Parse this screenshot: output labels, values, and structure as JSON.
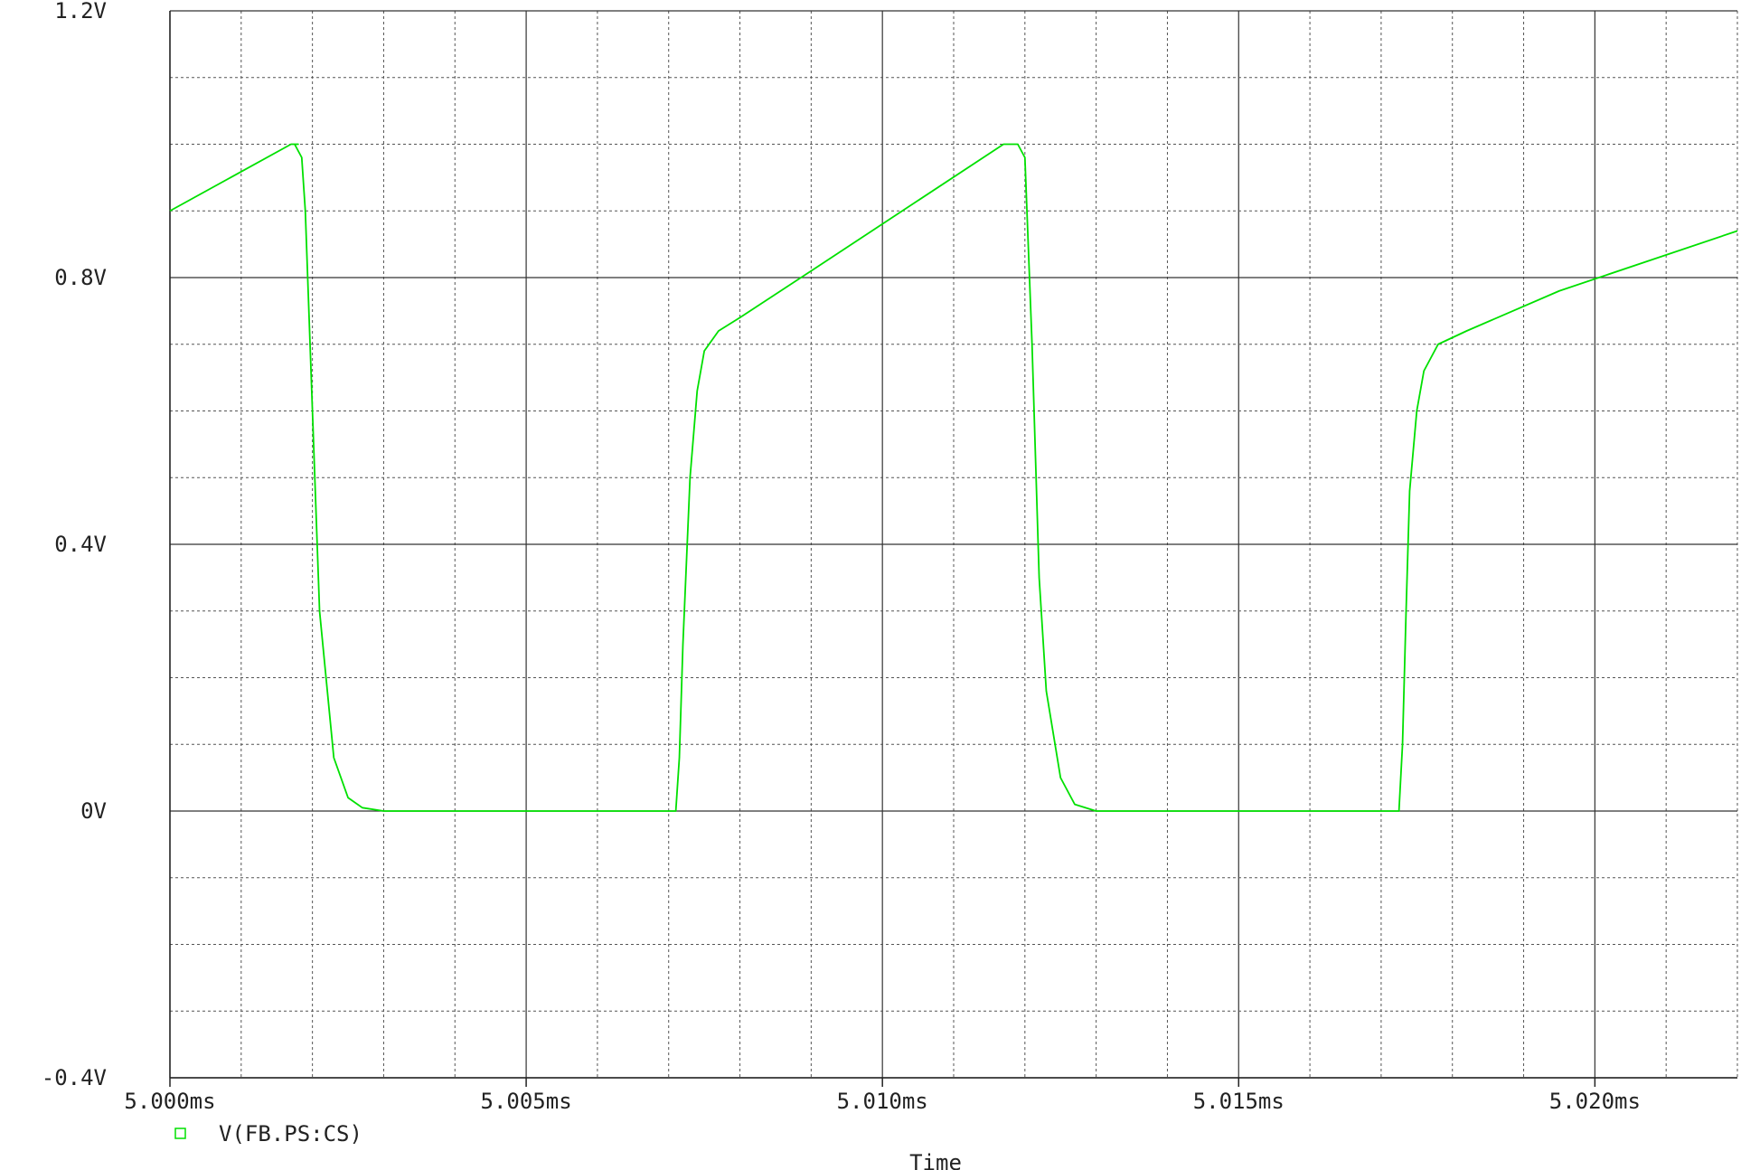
{
  "chart_data": {
    "type": "line",
    "xlabel": "Time",
    "ylabel": "",
    "xlim": [
      5.0,
      5.022
    ],
    "ylim": [
      -0.4,
      1.2
    ],
    "x_ticks": [
      5.0,
      5.005,
      5.01,
      5.015,
      5.02
    ],
    "x_tick_labels": [
      "5.000ms",
      "5.005ms",
      "5.010ms",
      "5.015ms",
      "5.020ms"
    ],
    "y_ticks": [
      -0.4,
      0,
      0.4,
      0.8,
      1.2
    ],
    "y_tick_labels": [
      "-0.4V",
      "0V",
      "0.4V",
      "0.8V",
      "1.2V"
    ],
    "grid": true,
    "legend_position": "bottom-left",
    "series": [
      {
        "name": "V(FB.PS:CS)",
        "color": "#00e000",
        "x": [
          5.0,
          5.0017,
          5.0018,
          5.00175,
          5.00185,
          5.0019,
          5.002,
          5.0021,
          5.0023,
          5.0025,
          5.0027,
          5.003,
          5.005,
          5.0071,
          5.00715,
          5.0072,
          5.0073,
          5.0074,
          5.0075,
          5.0077,
          5.008,
          5.009,
          5.0117,
          5.0119,
          5.012,
          5.0121,
          5.0122,
          5.0123,
          5.0125,
          5.0127,
          5.013,
          5.0137,
          5.0165,
          5.01725,
          5.0173,
          5.01735,
          5.0174,
          5.0175,
          5.0176,
          5.0178,
          5.0182,
          5.0195,
          5.022
        ],
        "y": [
          0.9,
          1.0,
          1.0,
          1.0,
          0.98,
          0.9,
          0.6,
          0.3,
          0.08,
          0.02,
          0.005,
          0.0,
          0.0,
          0.0,
          0.08,
          0.25,
          0.5,
          0.63,
          0.69,
          0.72,
          0.74,
          0.81,
          1.0,
          1.0,
          0.98,
          0.7,
          0.35,
          0.18,
          0.05,
          0.01,
          0.0,
          0.0,
          0.0,
          0.0,
          0.1,
          0.3,
          0.48,
          0.6,
          0.66,
          0.7,
          0.72,
          0.78,
          0.87
        ]
      }
    ]
  }
}
